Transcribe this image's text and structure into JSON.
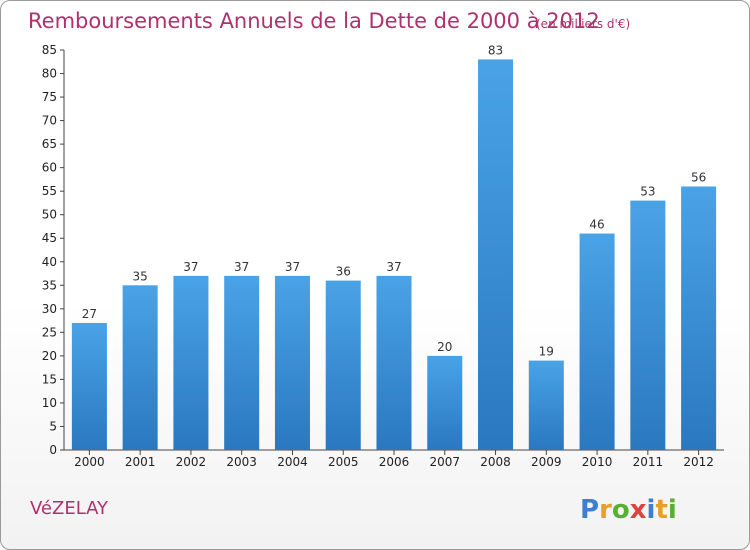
{
  "chart_data": {
    "type": "bar",
    "title": "Remboursements Annuels de la Dette de 2000 à 2012",
    "subtitle": "(en milliers d'€)",
    "categories": [
      "2000",
      "2001",
      "2002",
      "2003",
      "2004",
      "2005",
      "2006",
      "2007",
      "2008",
      "2009",
      "2010",
      "2011",
      "2012"
    ],
    "values": [
      27,
      35,
      37,
      37,
      37,
      36,
      37,
      20,
      83,
      19,
      46,
      53,
      56
    ],
    "ylim": [
      0,
      85
    ],
    "yticks": [
      0,
      5,
      10,
      15,
      20,
      25,
      30,
      35,
      40,
      45,
      50,
      55,
      60,
      65,
      70,
      75,
      80,
      85
    ],
    "grid": false,
    "bar_color": "#4aa3e6",
    "bar_color_dark": "#2a78c0"
  },
  "footer": {
    "town": "VéZELAY",
    "logo": {
      "letters": [
        "P",
        "r",
        "o",
        "x",
        "i",
        "t",
        "i"
      ],
      "colors": [
        "#3d7fd1",
        "#e8a020",
        "#58b030",
        "#e04040",
        "#3d7fd1",
        "#e8a020",
        "#58b030"
      ]
    }
  }
}
